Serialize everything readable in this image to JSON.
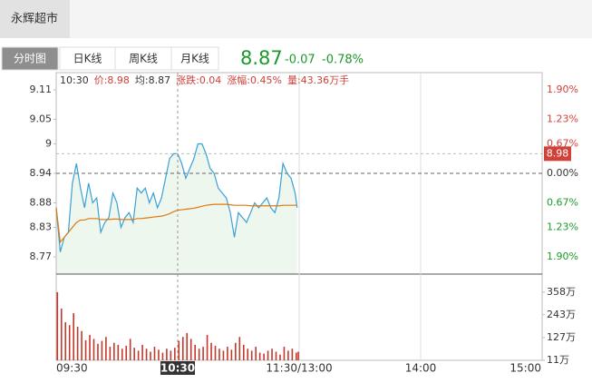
{
  "header": {
    "stock_tab": "永辉超市"
  },
  "tabs": [
    "分时图",
    "日K线",
    "周K线",
    "月K线"
  ],
  "active_tab": 0,
  "quote": {
    "price": "8.87",
    "change": "-0.07",
    "change_pct": "-0.78%",
    "color": "#1a9a2a"
  },
  "info": [
    "10:30",
    "价:8.98",
    "均:8.87",
    "涨跌:0.04",
    "涨幅:0.45%",
    "量:43.36万手"
  ],
  "chart_data": [
    {
      "type": "line",
      "x": [
        0,
        2,
        4,
        6,
        8,
        10,
        12,
        14,
        16,
        18,
        20,
        22,
        24,
        26,
        28,
        30,
        32,
        34,
        36,
        38,
        40,
        42,
        44,
        46,
        48,
        50,
        52,
        54,
        56,
        58,
        60,
        62,
        64,
        66,
        68,
        70,
        72,
        74,
        76,
        78,
        80,
        82,
        84,
        86,
        88,
        90,
        92,
        94,
        96,
        98,
        100,
        102,
        104,
        106,
        108,
        110,
        112,
        114,
        116,
        118,
        119
      ],
      "series": [
        {
          "name": "价",
          "color": "#3aa0d8",
          "values": [
            8.87,
            8.78,
            8.81,
            8.82,
            8.92,
            8.96,
            8.91,
            8.87,
            8.92,
            8.88,
            8.89,
            8.82,
            8.84,
            8.85,
            8.9,
            8.88,
            8.83,
            8.85,
            8.86,
            8.84,
            8.91,
            8.9,
            8.91,
            8.88,
            8.9,
            8.87,
            8.89,
            8.93,
            8.97,
            8.98,
            8.98,
            8.96,
            8.93,
            8.95,
            8.97,
            9.0,
            9.0,
            8.98,
            8.95,
            8.94,
            8.91,
            8.9,
            8.89,
            8.86,
            8.81,
            8.86,
            8.85,
            8.84,
            8.86,
            8.88,
            8.87,
            8.88,
            8.89,
            8.87,
            8.86,
            8.89,
            8.96,
            8.94,
            8.93,
            8.9,
            8.87
          ]
        },
        {
          "name": "均",
          "color": "#e07a10",
          "values": [
            8.87,
            8.8,
            8.81,
            8.82,
            8.83,
            8.84,
            8.845,
            8.845,
            8.848,
            8.848,
            8.848,
            8.846,
            8.846,
            8.846,
            8.847,
            8.847,
            8.846,
            8.846,
            8.846,
            8.846,
            8.848,
            8.848,
            8.849,
            8.85,
            8.851,
            8.852,
            8.853,
            8.855,
            8.858,
            8.862,
            8.865,
            8.866,
            8.867,
            8.868,
            8.869,
            8.871,
            8.873,
            8.875,
            8.876,
            8.877,
            8.877,
            8.877,
            8.877,
            8.876,
            8.875,
            8.875,
            8.875,
            8.875,
            8.874,
            8.874,
            8.874,
            8.874,
            8.874,
            8.874,
            8.874,
            8.874,
            8.875,
            8.875,
            8.875,
            8.875,
            8.875
          ]
        }
      ],
      "area_color": "#eef7ee",
      "xlim": [
        0,
        240
      ],
      "xticks": [
        {
          "value": 0,
          "label": "09:30"
        },
        {
          "value": 60,
          "label": "10:30"
        },
        {
          "value": 120,
          "label": "11:30/13:00"
        },
        {
          "value": 180,
          "label": "14:00"
        },
        {
          "value": 240,
          "label": "15:00"
        }
      ],
      "ylim": [
        8.735,
        9.145
      ],
      "yticks": [
        9.11,
        9.05,
        9.0,
        {
          "value": 8.94,
          "label": "8.94"
        },
        8.88,
        8.83,
        8.77
      ],
      "y2lim": [
        -2.29,
        2.29
      ],
      "y2ticks": [
        {
          "value": 1.9,
          "label": "1.90%"
        },
        {
          "value": 1.23,
          "label": "1.23%"
        },
        {
          "value": 0.67,
          "label": "0.67%"
        },
        {
          "value": 0,
          "label": "0.00%"
        },
        {
          "value": -0.67,
          "label": "0.67%"
        },
        {
          "value": -1.23,
          "label": "1.23%"
        },
        {
          "value": -1.9,
          "label": "1.90%"
        }
      ],
      "up_color": "#d0413a",
      "down_color": "#1a9a2a",
      "crosshair": {
        "x": 60,
        "y": 8.98
      }
    },
    {
      "type": "bar",
      "x": [
        0,
        2,
        4,
        6,
        8,
        10,
        12,
        14,
        16,
        18,
        20,
        22,
        24,
        26,
        28,
        30,
        32,
        34,
        36,
        38,
        40,
        42,
        44,
        46,
        48,
        50,
        52,
        54,
        56,
        58,
        60,
        62,
        64,
        66,
        68,
        70,
        72,
        74,
        76,
        78,
        80,
        82,
        84,
        86,
        88,
        90,
        92,
        94,
        96,
        98,
        100,
        102,
        104,
        106,
        108,
        110,
        112,
        114,
        116,
        118,
        119
      ],
      "values": [
        358,
        274,
        205,
        190,
        251,
        182,
        160,
        113,
        140,
        120,
        95,
        110,
        130,
        80,
        100,
        90,
        70,
        85,
        120,
        75,
        60,
        90,
        70,
        55,
        80,
        65,
        50,
        70,
        60,
        75,
        110,
        130,
        150,
        120,
        90,
        70,
        80,
        140,
        100,
        85,
        70,
        60,
        80,
        65,
        100,
        130,
        90,
        70,
        60,
        80,
        50,
        45,
        60,
        70,
        55,
        40,
        80,
        60,
        70,
        50,
        55
      ],
      "color": "#c0392b",
      "ylim": [
        11,
        436
      ],
      "yticks": [
        {
          "value": 358,
          "label": "358万"
        },
        {
          "value": 243,
          "label": "243万"
        },
        {
          "value": 127,
          "label": "127万"
        },
        {
          "value": 11,
          "label": "11万"
        }
      ]
    }
  ]
}
